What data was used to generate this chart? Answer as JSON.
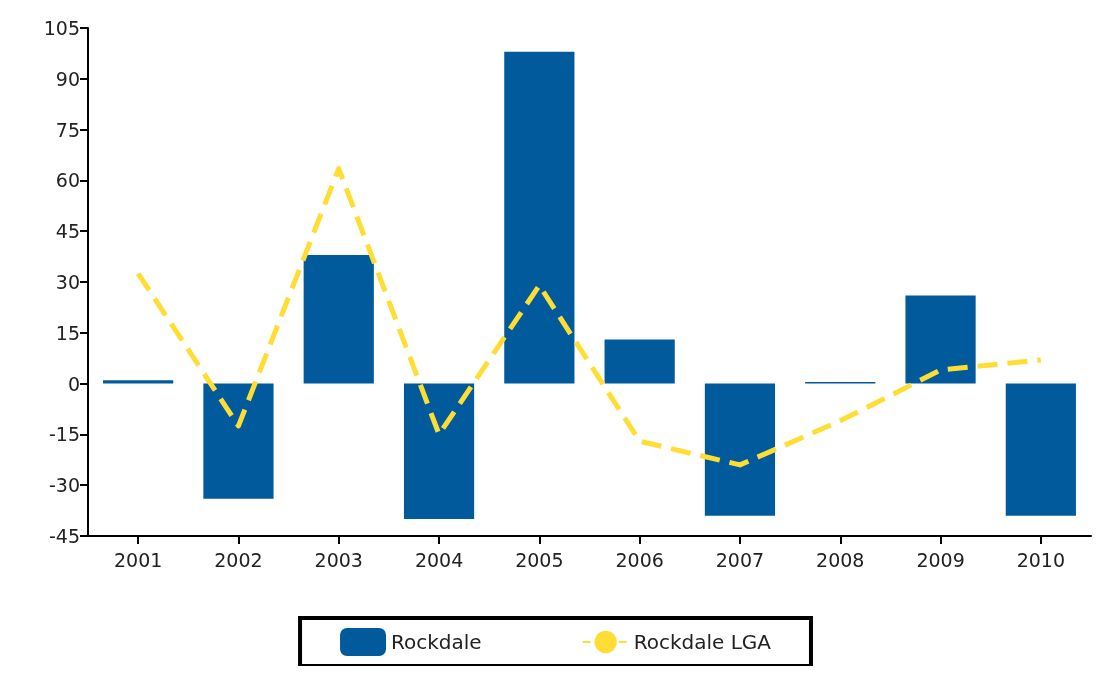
{
  "chart_data": {
    "type": "bar",
    "categories": [
      "2001",
      "2002",
      "2003",
      "2004",
      "2005",
      "2006",
      "2007",
      "2008",
      "2009",
      "2010"
    ],
    "series": [
      {
        "name": "Rockdale",
        "color": "#005a9c",
        "values": [
          1,
          -34,
          38,
          -40,
          98,
          13,
          -39,
          0.5,
          26,
          -39
        ]
      },
      {
        "name": "Rockdale LGA",
        "type": "line",
        "color": "#ffdd33",
        "line_style": "dashed",
        "marker": "none",
        "values": [
          32.5,
          -12.5,
          63.5,
          -15,
          29,
          -17,
          -24,
          -11,
          4,
          7
        ]
      }
    ],
    "ylim": [
      -45,
      105
    ],
    "yticks": [
      -45,
      -30,
      -15,
      0,
      15,
      30,
      45,
      60,
      75,
      90,
      105
    ],
    "grid": false,
    "legend": "bottom"
  }
}
